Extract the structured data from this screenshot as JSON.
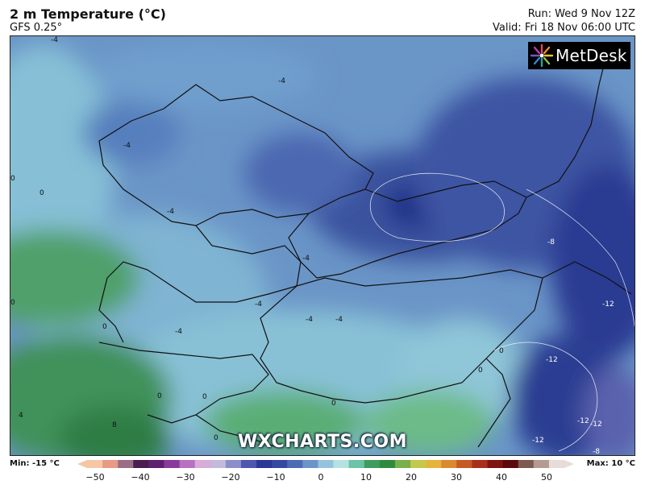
{
  "header": {
    "title": "2 m Temperature (°C)",
    "model": "GFS 0.25°",
    "run": "Run: Wed 9 Nov 12Z",
    "valid": "Valid: Fri 18 Nov 06:00 UTC"
  },
  "logo": {
    "text": "MetDesk"
  },
  "watermark": "WXCHARTS.COM",
  "contour_labels": [
    {
      "text": "-4"
    },
    {
      "text": "-4"
    },
    {
      "text": "-4"
    },
    {
      "text": "-4"
    },
    {
      "text": "-4"
    },
    {
      "text": "-4"
    },
    {
      "text": "-4"
    },
    {
      "text": "-4"
    },
    {
      "text": "-4"
    },
    {
      "text": "-8"
    },
    {
      "text": "-8"
    },
    {
      "text": "-12"
    },
    {
      "text": "-12"
    },
    {
      "text": "-12"
    },
    {
      "text": "-12"
    },
    {
      "text": "-12"
    },
    {
      "text": "0"
    },
    {
      "text": "0"
    },
    {
      "text": "0"
    },
    {
      "text": "0"
    },
    {
      "text": "0"
    },
    {
      "text": "0"
    },
    {
      "text": "0"
    },
    {
      "text": "0"
    },
    {
      "text": "0"
    },
    {
      "text": "0"
    },
    {
      "text": "4"
    },
    {
      "text": "8"
    }
  ],
  "scale": {
    "min_label": "Min: -15 °C",
    "max_label": "Max: 10 °C",
    "ticks": [
      "−50",
      "−40",
      "−30",
      "−20",
      "−10",
      "0",
      "10",
      "20",
      "30",
      "40",
      "50"
    ],
    "colors": [
      "#f6c7a5",
      "#e79a86",
      "#9b6d86",
      "#4b1c52",
      "#5e2170",
      "#8a3a98",
      "#b771c0",
      "#d7acd8",
      "#c3b9dc",
      "#8b8fc9",
      "#4e56b0",
      "#2c3696",
      "#35489f",
      "#4c6bb5",
      "#6d94c9",
      "#96c3dc",
      "#b4e2e2",
      "#6cc3a6",
      "#3e9c5e",
      "#2f8a3f",
      "#7ab04a",
      "#c2c94b",
      "#e7b43b",
      "#d98a2f",
      "#c55a23",
      "#a8301a",
      "#7d1410",
      "#5a0a0a",
      "#7c5a52",
      "#b59a92",
      "#e8dcd8"
    ]
  },
  "colors": {
    "cold_deep": "#1f2f86",
    "cold": "#3f5ea8",
    "cool": "#5f86c0",
    "near_zero": "#86bfd6",
    "mild": "#a9dfdc",
    "green": "#46a067",
    "dark_green": "#2f7d45"
  }
}
